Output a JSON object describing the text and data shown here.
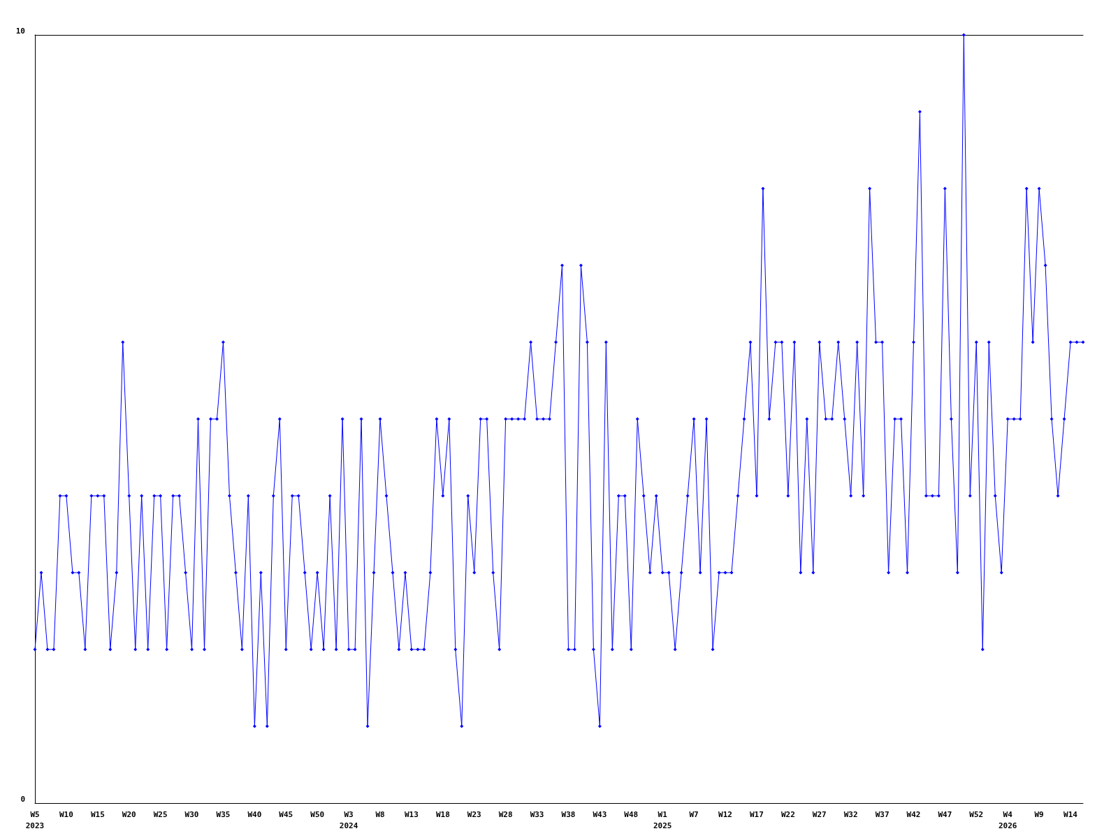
{
  "chart_data": {
    "type": "line",
    "categories": [
      "W5\n2023",
      null,
      null,
      null,
      null,
      "W10",
      null,
      null,
      null,
      null,
      "W15",
      null,
      null,
      null,
      null,
      "W20",
      null,
      null,
      null,
      null,
      "W25",
      null,
      null,
      null,
      null,
      "W30",
      null,
      null,
      null,
      null,
      "W35",
      null,
      null,
      null,
      null,
      "W40",
      null,
      null,
      null,
      null,
      "W45",
      null,
      null,
      null,
      null,
      "W50",
      null,
      null,
      null,
      null,
      "W3\n2024",
      null,
      null,
      null,
      null,
      "W8",
      null,
      null,
      null,
      null,
      "W13",
      null,
      null,
      null,
      null,
      "W18",
      null,
      null,
      null,
      null,
      "W23",
      null,
      null,
      null,
      null,
      "W28",
      null,
      null,
      null,
      null,
      "W33",
      null,
      null,
      null,
      null,
      "W38",
      null,
      null,
      null,
      null,
      "W43",
      null,
      null,
      null,
      null,
      "W48",
      null,
      null,
      null,
      null,
      "W1\n2025",
      null,
      null,
      null,
      null,
      "W7",
      null,
      null,
      null,
      null,
      "W12",
      null,
      null,
      null,
      null,
      "W17",
      null,
      null,
      null,
      null,
      "W22",
      null,
      null,
      null,
      null,
      "W27",
      null,
      null,
      null,
      null,
      "W32",
      null,
      null,
      null,
      null,
      "W37",
      null,
      null,
      null,
      null,
      "W42",
      null,
      null,
      null,
      null,
      "W47",
      null,
      null,
      null,
      null,
      "W52",
      null,
      null,
      null,
      null,
      "W4\n2026",
      null,
      null,
      null,
      null,
      "W9",
      null,
      null,
      null,
      null,
      "W14",
      null,
      null
    ],
    "series": [
      {
        "color": "#0000ff",
        "values": [
          2,
          3,
          2,
          2,
          4,
          4,
          3,
          3,
          2,
          4,
          4,
          4,
          2,
          3,
          6,
          4,
          2,
          4,
          2,
          4,
          4,
          2,
          4,
          4,
          3,
          2,
          5,
          2,
          5,
          5,
          6,
          4,
          3,
          2,
          4,
          1,
          3,
          1,
          4,
          5,
          2,
          4,
          4,
          3,
          2,
          3,
          2,
          4,
          2,
          5,
          2,
          2,
          5,
          1,
          3,
          5,
          4,
          3,
          2,
          3,
          2,
          2,
          2,
          3,
          5,
          4,
          5,
          2,
          1,
          4,
          3,
          5,
          5,
          3,
          2,
          5,
          5,
          5,
          5,
          6,
          5,
          5,
          5,
          6,
          7,
          2,
          2,
          7,
          6,
          2,
          1,
          6,
          2,
          4,
          4,
          2,
          5,
          4,
          3,
          4,
          3,
          3,
          2,
          3,
          4,
          5,
          3,
          5,
          2,
          3,
          3,
          3,
          4,
          5,
          6,
          4,
          8,
          5,
          6,
          6,
          4,
          6,
          3,
          5,
          3,
          6,
          5,
          5,
          6,
          5,
          4,
          6,
          4,
          8,
          6,
          6,
          3,
          5,
          5,
          3,
          6,
          9,
          4,
          4,
          4,
          8,
          5,
          3,
          10,
          4,
          6,
          2,
          6,
          4,
          3,
          5,
          5,
          5,
          8,
          6,
          8,
          7,
          5,
          4,
          5,
          6,
          6,
          6
        ]
      }
    ],
    "ylim": [
      0,
      10
    ],
    "yticks": [
      0,
      10
    ],
    "grid": false,
    "marker": "diamond",
    "line_style": "solid"
  }
}
